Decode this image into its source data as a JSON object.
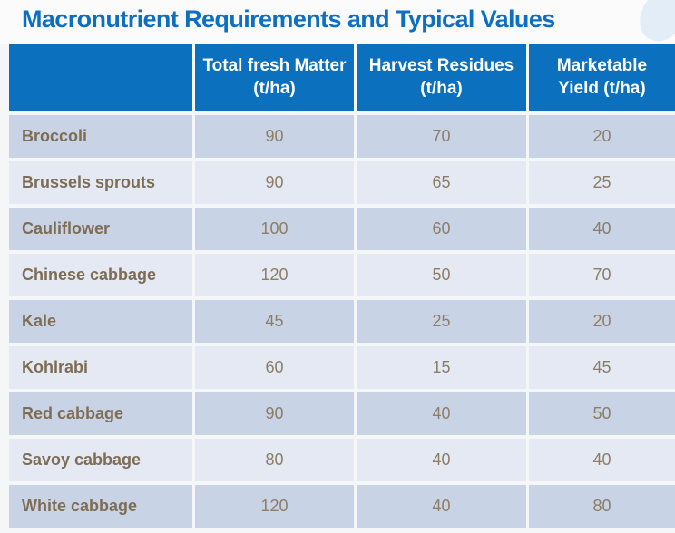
{
  "title": "Macronutrient Requirements and Typical Values",
  "colors": {
    "accent_blue": "#0b71bf",
    "title_blue": "#0d6fc1",
    "row_dark": "#c9d3e6",
    "row_light": "#e4e9f4",
    "label_text": "#7d6d55",
    "value_text": "#8d7d66"
  },
  "table": {
    "header": {
      "col0": "",
      "col1": "Total fresh Matter (t/ha)",
      "col2": "Harvest Residues (t/ha)",
      "col3": "Marketable Yield (t/ha)"
    },
    "rows": [
      {
        "label": "Broccoli",
        "values": [
          "90",
          "70",
          "20"
        ]
      },
      {
        "label": "Brussels sprouts",
        "values": [
          "90",
          "65",
          "25"
        ]
      },
      {
        "label": "Cauliflower",
        "values": [
          "100",
          "60",
          "40"
        ]
      },
      {
        "label": "Chinese cabbage",
        "values": [
          "120",
          "50",
          "70"
        ]
      },
      {
        "label": "Kale",
        "values": [
          "45",
          "25",
          "20"
        ]
      },
      {
        "label": "Kohlrabi",
        "values": [
          "60",
          "15",
          "45"
        ]
      },
      {
        "label": "Red cabbage",
        "values": [
          "90",
          "40",
          "50"
        ]
      },
      {
        "label": "Savoy cabbage",
        "values": [
          "80",
          "40",
          "40"
        ]
      },
      {
        "label": "White cabbage",
        "values": [
          "120",
          "40",
          "80"
        ]
      }
    ]
  }
}
